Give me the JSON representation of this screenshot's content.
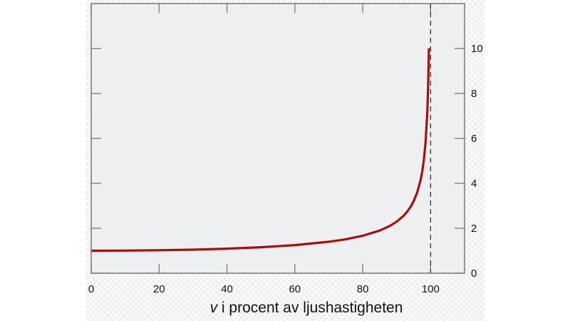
{
  "chart_data": {
    "type": "line",
    "title": "",
    "xlabel_var": "v",
    "xlabel_rest": " i procent av ljushastigheten",
    "ylabel": "",
    "xlim": [
      0,
      110
    ],
    "ylim": [
      0,
      12
    ],
    "x_ticks": [
      0,
      20,
      40,
      60,
      80,
      100
    ],
    "y_ticks": [
      0,
      2,
      4,
      6,
      8,
      10
    ],
    "y_tick_side": "right",
    "grid": false,
    "asymptote_x": 100,
    "colors": {
      "line": "#a50f0f",
      "plot_bg": "#eeeff1",
      "frame": "#777777",
      "asymptote": "#333333"
    },
    "series": [
      {
        "x": [
          0,
          10,
          20,
          30,
          40,
          50,
          60,
          70,
          75,
          80,
          85,
          88,
          90,
          92,
          93,
          94,
          95,
          96,
          97,
          97.5,
          98,
          98.5,
          99,
          99.25,
          99.5
        ],
        "y": [
          1,
          1.005,
          1.021,
          1.048,
          1.091,
          1.155,
          1.25,
          1.4,
          1.512,
          1.667,
          1.898,
          2.105,
          2.294,
          2.552,
          2.721,
          2.931,
          3.203,
          3.571,
          4.113,
          4.5,
          5.025,
          5.783,
          7.089,
          8.177,
          10.013
        ]
      }
    ]
  }
}
